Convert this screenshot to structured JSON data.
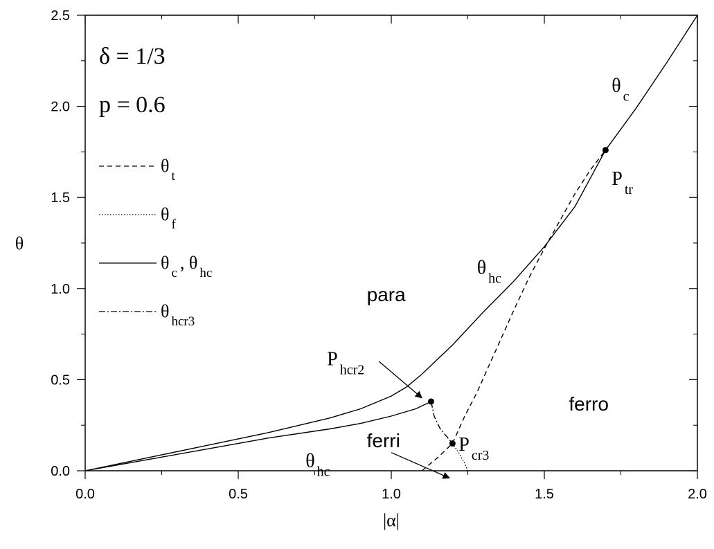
{
  "chart_data": {
    "type": "line",
    "xlabel": "|α|",
    "ylabel": "θ",
    "xlim": [
      0.0,
      2.0
    ],
    "ylim": [
      0.0,
      2.5
    ],
    "xticks": [
      "0.0",
      "0.5",
      "1.0",
      "1.5",
      "2.0"
    ],
    "yticks": [
      "0.0",
      "0.5",
      "1.0",
      "1.5",
      "2.0",
      "2.5"
    ],
    "grid": false,
    "legend_position": "left",
    "params": [
      "δ = 1/3",
      "p = 0.6"
    ],
    "legend": [
      {
        "style": "dashed",
        "symbol": "θ",
        "sub": "t"
      },
      {
        "style": "dotted",
        "symbol": "θ",
        "sub": "f"
      },
      {
        "style": "solid",
        "symbol": "θ",
        "sub": "c",
        "extra_symbol": ", θ",
        "extra_sub": "hc"
      },
      {
        "style": "dashdot",
        "symbol": "θ",
        "sub": "hcr3"
      }
    ],
    "series": [
      {
        "style": "solid",
        "points": [
          [
            0.0,
            0.0
          ],
          [
            0.2,
            0.07
          ],
          [
            0.4,
            0.14
          ],
          [
            0.6,
            0.21
          ],
          [
            0.8,
            0.29
          ],
          [
            0.9,
            0.34
          ],
          [
            1.0,
            0.41
          ],
          [
            1.05,
            0.46
          ],
          [
            1.1,
            0.53
          ],
          [
            1.15,
            0.61
          ],
          [
            1.2,
            0.69
          ],
          [
            1.3,
            0.87
          ],
          [
            1.4,
            1.04
          ],
          [
            1.5,
            1.23
          ],
          [
            1.6,
            1.45
          ],
          [
            1.7,
            1.76
          ],
          [
            1.8,
            1.99
          ],
          [
            1.9,
            2.24
          ],
          [
            2.0,
            2.5
          ]
        ]
      },
      {
        "style": "solid",
        "points": [
          [
            0.0,
            0.0
          ],
          [
            0.2,
            0.06
          ],
          [
            0.4,
            0.12
          ],
          [
            0.6,
            0.18
          ],
          [
            0.8,
            0.23
          ],
          [
            0.9,
            0.26
          ],
          [
            1.0,
            0.3
          ],
          [
            1.08,
            0.34
          ],
          [
            1.13,
            0.38
          ]
        ]
      },
      {
        "style": "dashed",
        "points": [
          [
            1.2,
            0.15
          ],
          [
            1.24,
            0.3
          ],
          [
            1.28,
            0.43
          ],
          [
            1.32,
            0.58
          ],
          [
            1.36,
            0.73
          ],
          [
            1.4,
            0.88
          ],
          [
            1.45,
            1.06
          ],
          [
            1.5,
            1.22
          ],
          [
            1.55,
            1.37
          ],
          [
            1.6,
            1.52
          ],
          [
            1.65,
            1.65
          ],
          [
            1.7,
            1.76
          ]
        ]
      },
      {
        "style": "dashed",
        "points": [
          [
            1.1,
            0.0
          ],
          [
            1.15,
            0.07
          ],
          [
            1.2,
            0.15
          ]
        ]
      },
      {
        "style": "dotted",
        "points": [
          [
            1.2,
            0.15
          ],
          [
            1.22,
            0.1
          ],
          [
            1.24,
            0.04
          ],
          [
            1.25,
            0.0
          ]
        ]
      },
      {
        "style": "dashdot",
        "points": [
          [
            1.13,
            0.38
          ],
          [
            1.14,
            0.3
          ],
          [
            1.16,
            0.23
          ],
          [
            1.18,
            0.19
          ],
          [
            1.2,
            0.15
          ]
        ]
      }
    ],
    "markers": [
      {
        "name": "P_tr",
        "x": 1.7,
        "y": 1.76
      },
      {
        "name": "P_hcr2",
        "x": 1.13,
        "y": 0.38
      },
      {
        "name": "P_cr3",
        "x": 1.2,
        "y": 0.15
      }
    ],
    "region_labels": [
      "para",
      "ferro",
      "ferri"
    ],
    "annotations": [
      {
        "symbol": "θ",
        "sub": "c",
        "x": 1.72,
        "y": 2.08
      },
      {
        "symbol": "θ",
        "sub": "hc",
        "x": 1.28,
        "y": 1.08
      },
      {
        "symbol": "θ",
        "sub": "hc",
        "x": 0.72,
        "y": 0.02
      },
      {
        "symbol": "P",
        "sub": "tr",
        "x": 1.72,
        "y": 1.57
      },
      {
        "symbol": "P",
        "sub": "hcr2",
        "x": 0.79,
        "y": 0.58
      },
      {
        "symbol": "P",
        "sub": "cr3",
        "x": 1.22,
        "y": 0.11
      }
    ],
    "region_positions": [
      {
        "x": 0.92,
        "y": 0.93
      },
      {
        "x": 1.58,
        "y": 0.33
      },
      {
        "x": 0.92,
        "y": 0.13
      }
    ],
    "arrows": [
      {
        "from": [
          0.96,
          0.6
        ],
        "to": [
          1.1,
          0.4
        ]
      },
      {
        "from": [
          1.0,
          0.1
        ],
        "to": [
          1.19,
          -0.04
        ]
      }
    ]
  }
}
